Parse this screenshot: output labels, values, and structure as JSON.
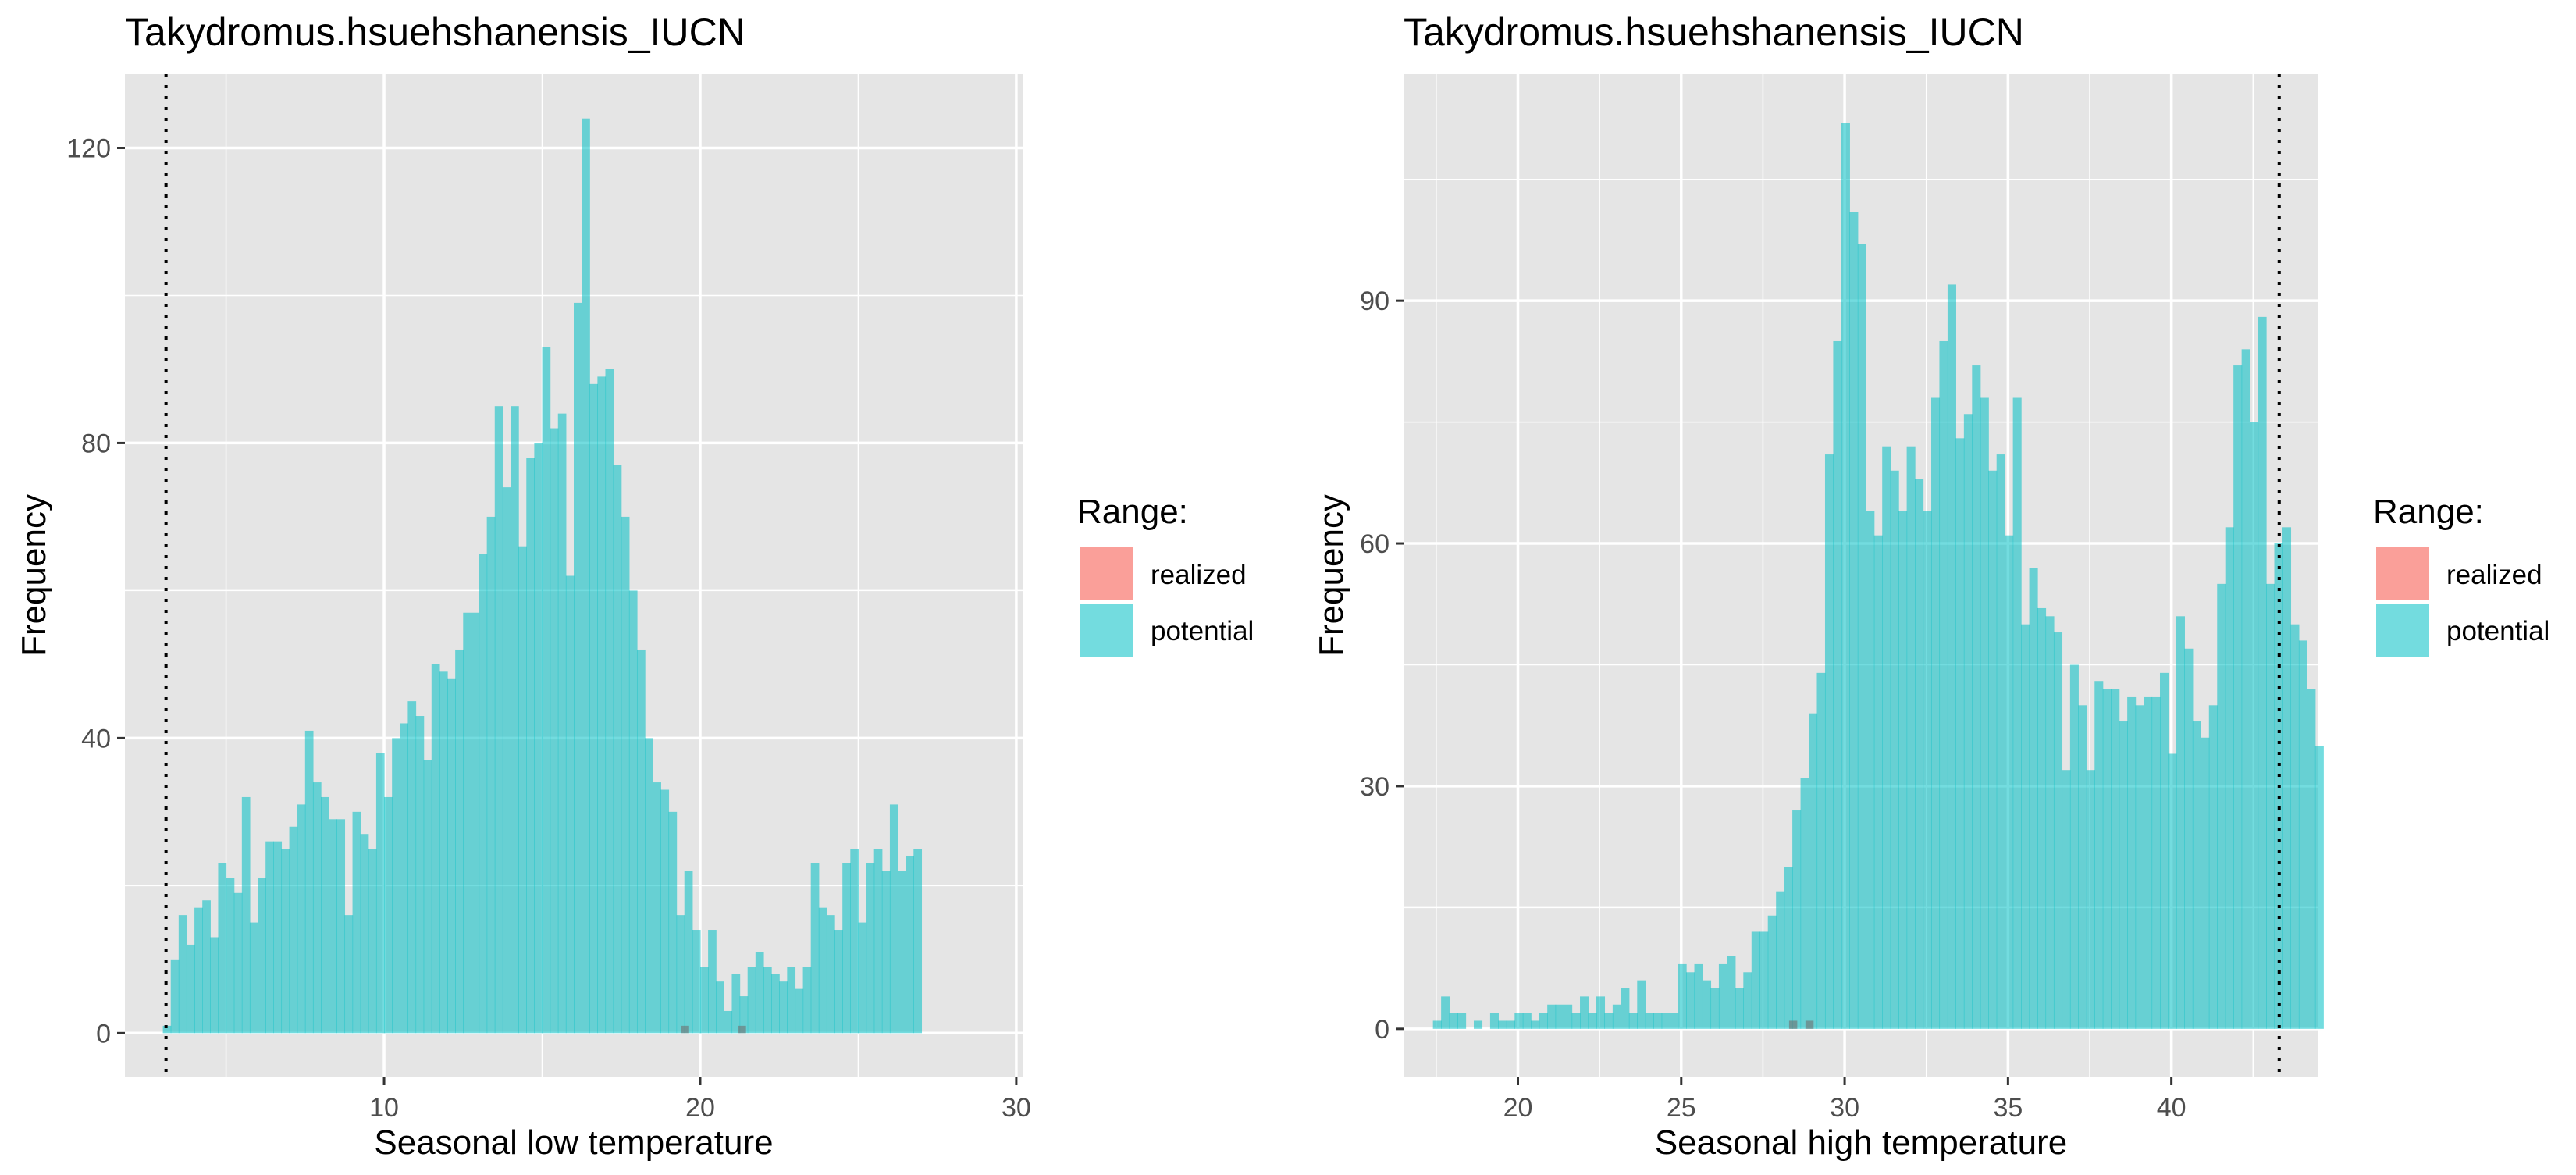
{
  "colors": {
    "panel_bg": "#e5e5e5",
    "grid": "#ffffff",
    "realized": "#f8766d",
    "potential": "#00bfc4",
    "bar_opacity": 0.55,
    "text": "#000000",
    "tick_text": "#4d4d4d"
  },
  "legend": {
    "title": "Range:",
    "items": [
      "realized",
      "potential"
    ]
  },
  "chart_data": [
    {
      "type": "histogram",
      "title": "Takydromus.hsuehshanensis_IUCN",
      "xlabel": "Seasonal low temperature",
      "ylabel": "Frequency",
      "xlim": [
        1.8,
        30.2
      ],
      "ylim": [
        -6,
        130
      ],
      "xticks": [
        10,
        20,
        30
      ],
      "yticks": [
        0,
        40,
        80,
        120
      ],
      "xticks_minor": [
        5,
        15,
        25
      ],
      "yticks_minor": [
        20,
        60,
        100
      ],
      "vline": 3.1,
      "bin_start": 3.0,
      "bin_width": 0.25,
      "grid": true,
      "legend_position": "right",
      "series": [
        {
          "name": "potential",
          "values": [
            1,
            10,
            16,
            12,
            17,
            18,
            13,
            23,
            21,
            19,
            32,
            15,
            21,
            26,
            26,
            25,
            28,
            31,
            41,
            34,
            32,
            29,
            29,
            16,
            30,
            27,
            25,
            38,
            32,
            40,
            42,
            45,
            43,
            37,
            50,
            49,
            48,
            52,
            57,
            57,
            65,
            70,
            85,
            74,
            85,
            66,
            78,
            80,
            93,
            82,
            84,
            62,
            99,
            124,
            88,
            89,
            90,
            77,
            70,
            60,
            52,
            40,
            34,
            33,
            30,
            16,
            22,
            14,
            9,
            14,
            7,
            3,
            8,
            5,
            9,
            11,
            9,
            8,
            7,
            9,
            6,
            9,
            23,
            17,
            16,
            14,
            23,
            25,
            15,
            23,
            25,
            22,
            31,
            22,
            24,
            25
          ]
        },
        {
          "name": "realized",
          "x": [
            19.4,
            21.2
          ],
          "values": [
            1,
            1
          ]
        }
      ]
    },
    {
      "type": "histogram",
      "title": "Takydromus.hsuehshanensis_IUCN",
      "xlabel": "Seasonal high temperature",
      "ylabel": "Frequency",
      "xlim": [
        16.5,
        44.5
      ],
      "ylim": [
        -6,
        118
      ],
      "xticks": [
        20,
        25,
        30,
        35,
        40
      ],
      "yticks": [
        0,
        30,
        60,
        90
      ],
      "xticks_minor": [
        17.5,
        22.5,
        27.5,
        32.5,
        37.5,
        42.5
      ],
      "yticks_minor": [
        15,
        45,
        75,
        105
      ],
      "vline": 43.3,
      "bin_start": 17.4,
      "bin_width": 0.25,
      "grid": true,
      "legend_position": "right",
      "series": [
        {
          "name": "potential",
          "values": [
            1,
            4,
            2,
            2,
            0,
            1,
            0,
            2,
            1,
            1,
            2,
            2,
            1,
            2,
            3,
            3,
            3,
            2,
            4,
            2,
            4,
            2,
            3,
            5,
            2,
            6,
            2,
            2,
            2,
            2,
            8,
            7,
            8,
            6,
            5,
            8,
            9,
            5,
            7,
            12,
            12,
            14,
            17,
            20,
            27,
            31,
            39,
            44,
            71,
            85,
            112,
            101,
            97,
            64,
            61,
            72,
            69,
            64,
            72,
            68,
            64,
            78,
            85,
            92,
            73,
            76,
            82,
            78,
            69,
            71,
            61,
            78,
            50,
            57,
            52,
            51,
            49,
            32,
            45,
            40,
            32,
            43,
            42,
            42,
            38,
            41,
            40,
            41,
            41,
            44,
            34,
            51,
            47,
            38,
            36,
            40,
            55,
            62,
            82,
            84,
            75,
            88,
            55,
            60,
            62,
            50,
            48,
            42,
            35
          ]
        },
        {
          "name": "realized",
          "x": [
            28.3,
            28.8
          ],
          "values": [
            1,
            1
          ]
        }
      ]
    }
  ]
}
